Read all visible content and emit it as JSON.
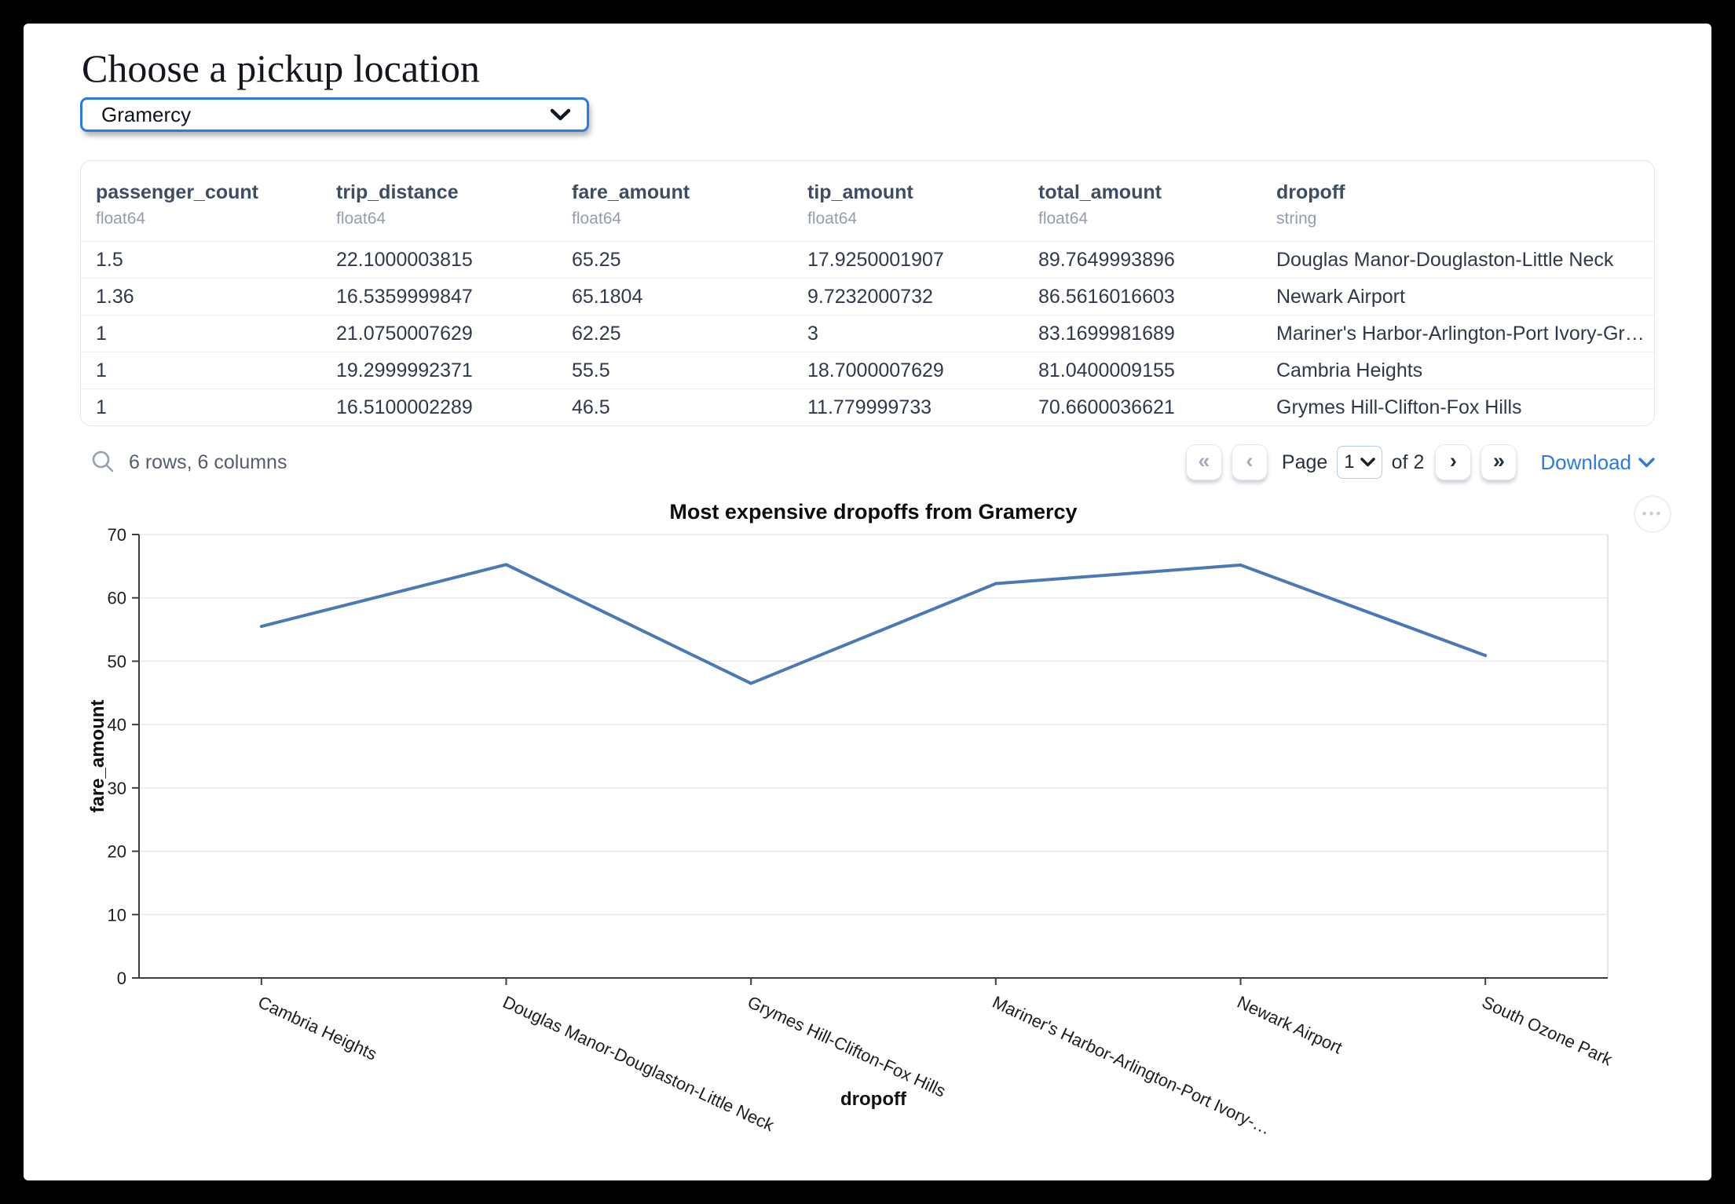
{
  "page": {
    "title": "Choose a pickup location"
  },
  "pickup_select": {
    "value": "Gramercy"
  },
  "table": {
    "columns": [
      {
        "name": "passenger_count",
        "type": "float64"
      },
      {
        "name": "trip_distance",
        "type": "float64"
      },
      {
        "name": "fare_amount",
        "type": "float64"
      },
      {
        "name": "tip_amount",
        "type": "float64"
      },
      {
        "name": "total_amount",
        "type": "float64"
      },
      {
        "name": "dropoff",
        "type": "string"
      }
    ],
    "rows": [
      [
        "1.5",
        "22.1000003815",
        "65.25",
        "17.9250001907",
        "89.7649993896",
        "Douglas Manor-Douglaston-Little Neck"
      ],
      [
        "1.36",
        "16.5359999847",
        "65.1804",
        "9.7232000732",
        "86.5616016603",
        "Newark Airport"
      ],
      [
        "1",
        "21.0750007629",
        "62.25",
        "3",
        "83.1699981689",
        "Mariner's Harbor-Arlington-Port Ivory-Graniteville"
      ],
      [
        "1",
        "19.2999992371",
        "55.5",
        "18.7000007629",
        "81.0400009155",
        "Cambria Heights"
      ],
      [
        "1",
        "16.5100002289",
        "46.5",
        "11.779999733",
        "70.6600036621",
        "Grymes Hill-Clifton-Fox Hills"
      ]
    ],
    "summary": "6 rows, 6 columns",
    "pagination": {
      "first_glyph": "«",
      "prev_glyph": "‹",
      "page_label": "Page",
      "current_page": "1",
      "of_label": "of 2",
      "next_glyph": "›",
      "last_glyph": "»"
    },
    "download_label": "Download"
  },
  "chart_data": {
    "type": "line",
    "title": "Most expensive dropoffs from Gramercy",
    "categories": [
      "Cambria Heights",
      "Douglas Manor-Douglaston-Little Neck",
      "Grymes Hill-Clifton-Fox Hills",
      "Mariner's Harbor-Arlington-Port Ivory-…",
      "Newark Airport",
      "South Ozone Park"
    ],
    "values": [
      55.5,
      65.25,
      46.5,
      62.25,
      65.1804,
      50.9
    ],
    "xlabel": "dropoff",
    "ylabel": "fare_amount",
    "ylim": [
      0,
      70
    ],
    "yticks": [
      0,
      10,
      20,
      30,
      40,
      50,
      60,
      70
    ],
    "grid": true,
    "legend": "none",
    "line_color": "#4a79b5",
    "x_label_rotation_deg": 25
  },
  "icons": {
    "menu_dots": "•••",
    "select_chevron": "chevron-down",
    "search": "magnifier"
  },
  "colors": {
    "accent_blue": "#2b79e3",
    "link_blue": "#2b7ae2",
    "header_slate": "#3e4d64",
    "line_blue": "#4a79b5",
    "frame_black": "#000000"
  }
}
